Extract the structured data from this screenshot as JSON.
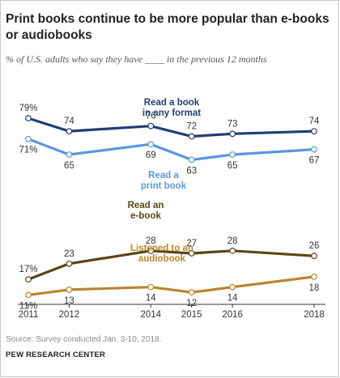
{
  "title": "Print books continue to be more popular than e-books or audiobooks",
  "subtitle": "% of U.S. adults who say they have ____ in the previous 12 months",
  "source": "Source: Survey conducted Jan. 3-10, 2018.",
  "organization": "PEW RESEARCH CENTER",
  "chart_data": {
    "type": "line",
    "x": [
      2011,
      2012,
      2014,
      2015,
      2016,
      2018
    ],
    "x_tick_labels": [
      "2011",
      "2012",
      "2014",
      "2015",
      "2016",
      "2018"
    ],
    "ylim": [
      8,
      84
    ],
    "grid": false,
    "series": [
      {
        "name": "Read a book in any format",
        "label_lines": [
          "Read a book",
          "in any format"
        ],
        "color": "#1f3f73",
        "values": [
          79,
          74,
          76,
          72,
          73,
          74
        ],
        "label_pos": "above"
      },
      {
        "name": "Read a print book",
        "label_lines": [
          "Read a",
          "print book"
        ],
        "color": "#5b97dd",
        "values": [
          71,
          65,
          69,
          63,
          65,
          67
        ],
        "label_pos": "below"
      },
      {
        "name": "Read an e-book",
        "label_lines": [
          "Read an",
          "e-book"
        ],
        "color": "#5c4515",
        "values": [
          17,
          23,
          28,
          27,
          28,
          26
        ],
        "label_pos": "above"
      },
      {
        "name": "Listened to an audiobook",
        "label_lines": [
          "Listened to an",
          "audiobook"
        ],
        "color": "#b8862e",
        "values": [
          11,
          13,
          14,
          12,
          14,
          18
        ],
        "label_pos": "below"
      }
    ]
  }
}
